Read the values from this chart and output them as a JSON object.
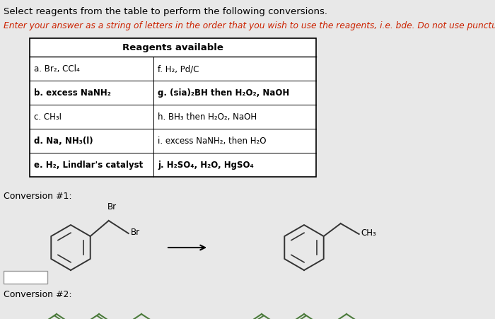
{
  "background_color": "#e8e8e8",
  "title_text": "Select reagents from the table to perform the following conversions.",
  "instruction_text": "Enter your answer as a string of letters in the order that you wish to use the reagents, i.e. bde. Do not use punctuation",
  "table_header": "Reagents available",
  "table_rows_left": [
    "a. Br₂, CCl₄",
    "b. excess NaNH₂",
    "c. CH₃I",
    "d. Na, NH₃(l)",
    "e. H₂, Lindlar's catalyst"
  ],
  "table_rows_right": [
    "f. H₂, Pd/C",
    "g. (sia)₂BH then H₂O₂, NaOH",
    "h. BH₃ then H₂O₂, NaOH",
    "i. excess NaNH₂, then H₂O",
    "j. H₂SO₄, H₂O, HgSO₄"
  ],
  "bold_left": [
    false,
    true,
    false,
    true,
    true
  ],
  "bold_right": [
    false,
    true,
    false,
    false,
    true
  ],
  "conversion1_label": "Conversion #1:",
  "conversion2_label": "Conversion #2:",
  "struct_color": "#333333",
  "seg_color_left2": "#4a7a3a",
  "seg_color_right2": "#4a7a3a"
}
